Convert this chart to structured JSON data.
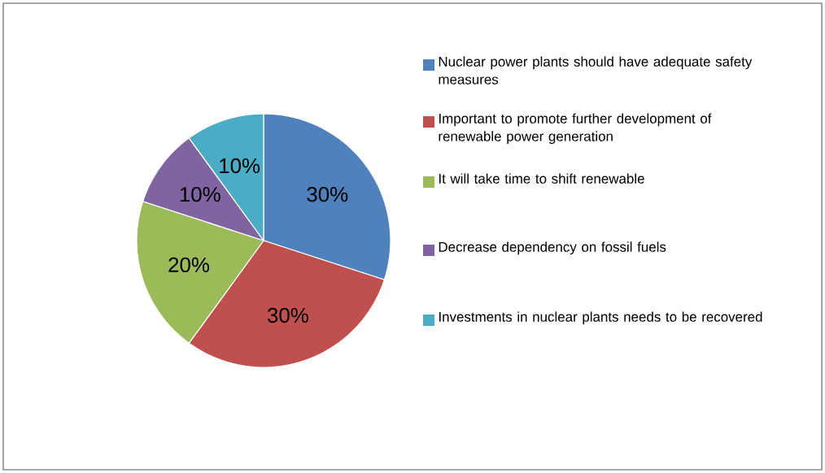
{
  "chart_data": {
    "type": "pie",
    "legend": "right",
    "categories": [
      "Nuclear power plants should have adequate safety measures",
      "Important to promote further development of renewable power generation",
      "It will take time to shift renewable",
      "Decrease dependency on fossil fuels",
      "Investments in nuclear plants needs to be recovered"
    ],
    "values": [
      30,
      30,
      20,
      10,
      10
    ],
    "value_labels": [
      "30%",
      "30%",
      "20%",
      "10%",
      "10%"
    ],
    "colors": [
      "#4f81bd",
      "#c0504d",
      "#9bbb59",
      "#8064a2",
      "#4bacc6"
    ]
  }
}
